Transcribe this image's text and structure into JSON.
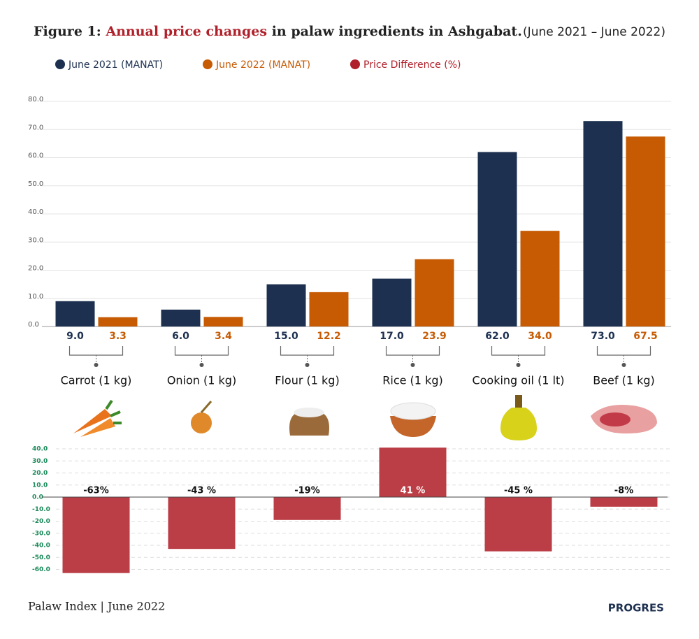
{
  "title": [
    "Figure 1: ",
    "Annual price changes",
    " in palaw ingredients in Ashgabat."
  ],
  "subtitle": "(June 2021 – June 2022)",
  "footer": "Palaw Index | June 2022",
  "brand": "PROGRES",
  "chart_data": [
    {
      "type": "bar",
      "categories": [
        "Carrot (1 kg)",
        "Onion (1 kg)",
        "Flour (1 kg)",
        "Rice (1 kg)",
        "Cooking oil (1 lt)",
        "Beef (1 kg)"
      ],
      "series": [
        {
          "name": "June 2021 (MANAT)",
          "color": "#1d3050",
          "values": [
            9.0,
            6.0,
            15.0,
            17.0,
            62.0,
            73.0
          ],
          "value_labels": [
            "9.0",
            "6.0",
            "15.0",
            "17.0",
            "62.0",
            "73.0"
          ]
        },
        {
          "name": "June 2022 (MANAT)",
          "color": "#c65b04",
          "values": [
            3.3,
            3.4,
            12.2,
            23.9,
            34.0,
            67.5
          ],
          "value_labels": [
            "3.3",
            "3.4",
            "12.2",
            "23.9",
            "34.0",
            "67.5"
          ]
        }
      ],
      "ylim": [
        0,
        80
      ],
      "yticks": [
        {
          "value": 0,
          "label": "0.0"
        },
        {
          "value": 10,
          "label": "10.0"
        },
        {
          "value": 20,
          "label": "20.0"
        },
        {
          "value": 30,
          "label": "30.0"
        },
        {
          "value": 40,
          "label": "40.0"
        },
        {
          "value": 50,
          "label": "50.0"
        },
        {
          "value": 60,
          "label": "60.0"
        },
        {
          "value": 70,
          "label": "70.0"
        },
        {
          "value": 80,
          "label": "80.0"
        }
      ],
      "grid": true
    },
    {
      "type": "bar",
      "series": [
        {
          "name": "Price Difference (%)",
          "color": "#bb3e46",
          "values": [
            -63,
            -43,
            -19,
            41,
            -45,
            -8
          ],
          "value_labels": [
            "-63%",
            "-43 %",
            "-19%",
            "41 %",
            "-45 %",
            "-8%"
          ]
        }
      ],
      "ylim": [
        -60,
        40
      ],
      "yticks": [
        {
          "value": 40,
          "label": "40.0"
        },
        {
          "value": 30,
          "label": "30.0"
        },
        {
          "value": 20,
          "label": "20.0"
        },
        {
          "value": 10,
          "label": "10.0"
        },
        {
          "value": 0,
          "label": "0.0"
        },
        {
          "value": -10,
          "label": "-10.0"
        },
        {
          "value": -20,
          "label": "-20.0"
        },
        {
          "value": -30,
          "label": "-30.0"
        },
        {
          "value": -40,
          "label": "-40.0"
        },
        {
          "value": -50,
          "label": "-50.0"
        },
        {
          "value": -60,
          "label": "-60.0"
        }
      ],
      "grid": true,
      "legend_color": "#b0202a"
    }
  ]
}
